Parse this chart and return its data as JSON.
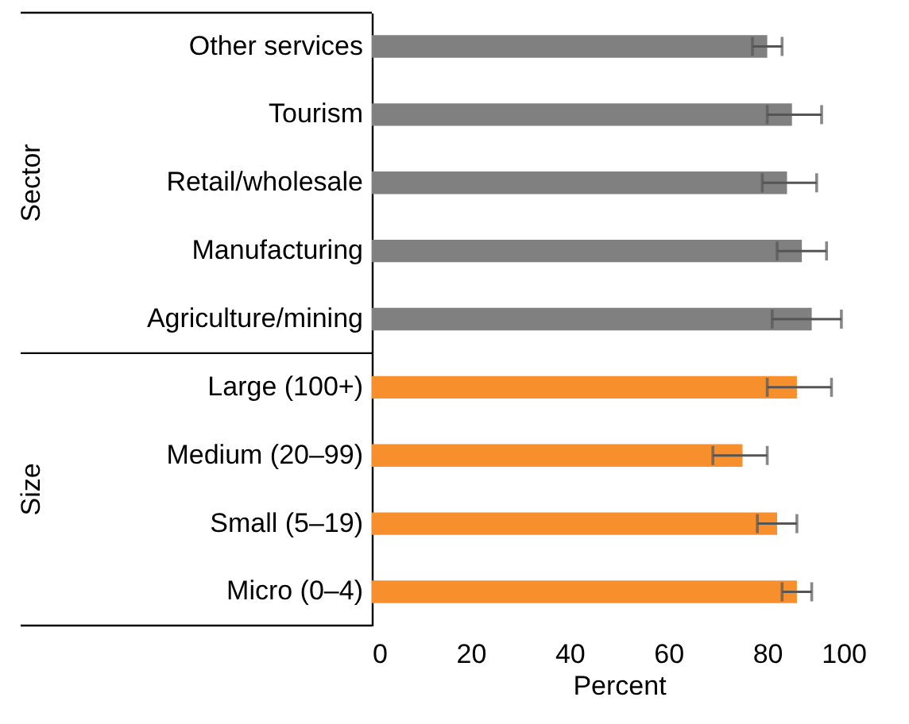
{
  "chart_data": {
    "type": "bar",
    "orientation": "horizontal",
    "categories": [
      "Other services",
      "Tourism",
      "Retail/wholesale",
      "Manufacturing",
      "Agriculture/mining",
      "Large (100+)",
      "Medium (20–99)",
      "Small (5–19)",
      "Micro (0–4)"
    ],
    "values": [
      80,
      85,
      84,
      87,
      89,
      86,
      75,
      82,
      86
    ],
    "colors": [
      "#808080",
      "#808080",
      "#808080",
      "#808080",
      "#808080",
      "#f7902c",
      "#f7902c",
      "#f7902c",
      "#f7902c"
    ],
    "errors": [
      [
        77,
        83
      ],
      [
        80,
        91
      ],
      [
        79,
        90
      ],
      [
        82,
        92
      ],
      [
        81,
        95
      ],
      [
        80,
        93
      ],
      [
        69,
        80
      ],
      [
        78,
        86
      ],
      [
        83,
        89
      ]
    ],
    "xlim": [
      0,
      100
    ],
    "xticks": [
      0,
      20,
      40,
      60,
      80,
      100
    ],
    "xlabel": "Percent",
    "annotations": [
      "Sector",
      "Size"
    ]
  }
}
